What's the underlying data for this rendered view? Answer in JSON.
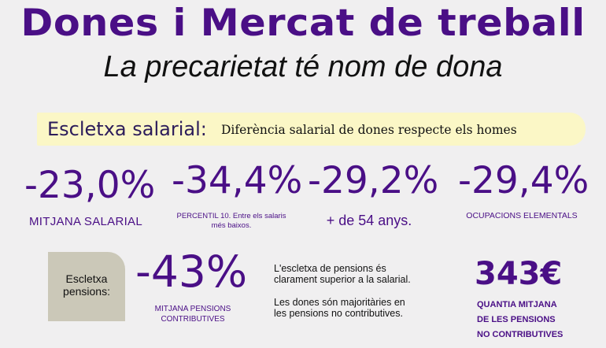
{
  "header": {
    "title": "Dones i Mercat de treball",
    "subtitle": "La precarietat té nom de dona"
  },
  "salary_gap": {
    "label": "Escletxa salarial:",
    "description": "Diferència salarial de dones respecte els homes",
    "stats": [
      {
        "value": "-23,0%",
        "caption": "MITJANA SALARIAL"
      },
      {
        "value": "-34,4%",
        "caption": "PERCENTIL 10. Entre els salaris més baixos."
      },
      {
        "value": "-29,2%",
        "caption": "+ de 54 anys."
      },
      {
        "value": "-29,4%",
        "caption": "OCUPACIONS ELEMENTALS"
      }
    ]
  },
  "pension_gap": {
    "label": "Escletxa pensions:",
    "value": "-43%",
    "caption": "MITJANA PENSIONS CONTRIBUTIVES",
    "note_1": "L'escletxa de pensions és clarament superior a la salarial.",
    "note_2": "Les dones són majoritàries en les pensions no contributives.",
    "amount": "343€",
    "amount_caption": "QUANTIA MITJANA DE LES PENSIONS NO CONTRIBUTIVES"
  },
  "colors": {
    "accent": "#4a0f86",
    "band": "#fbf7c6",
    "pension_box": "#cbc8b8"
  }
}
